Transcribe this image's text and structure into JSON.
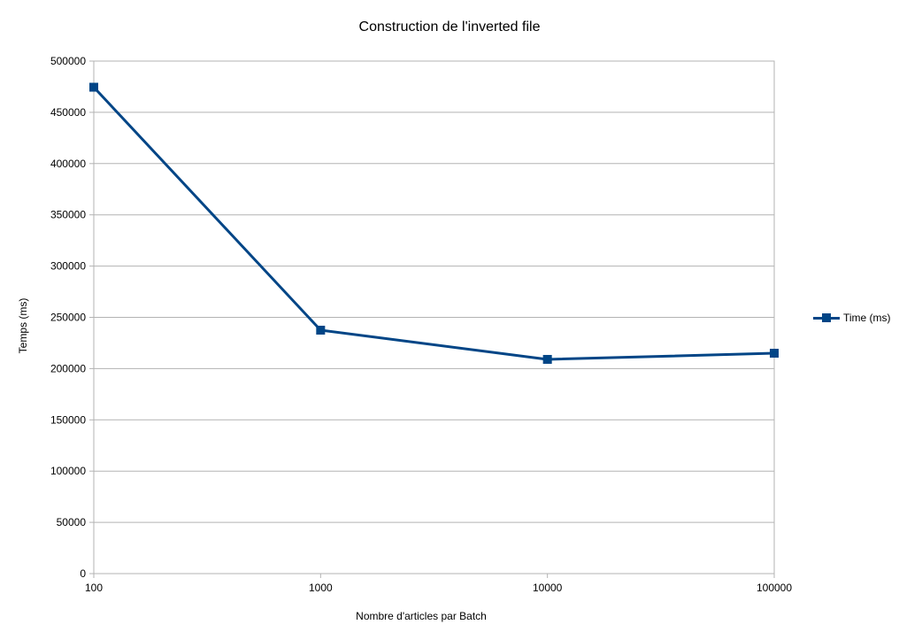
{
  "chart_data": {
    "type": "line",
    "title": "Construction de l'inverted file",
    "xlabel": "Nombre d'articles par Batch",
    "ylabel": "Temps (ms)",
    "x_scale": "log",
    "categories": [
      "100",
      "1000",
      "10000",
      "100000"
    ],
    "x": [
      100,
      1000,
      10000,
      100000
    ],
    "series": [
      {
        "name": "Time (ms)",
        "values": [
          474500,
          237500,
          209000,
          215000
        ],
        "color": "#004586",
        "marker": "square"
      }
    ],
    "ylim": [
      0,
      500000
    ],
    "y_ticks": [
      0,
      50000,
      100000,
      150000,
      200000,
      250000,
      300000,
      350000,
      400000,
      450000,
      500000
    ],
    "y_tick_labels": [
      "0",
      "50000",
      "100000",
      "150000",
      "200000",
      "250000",
      "300000",
      "350000",
      "400000",
      "450000",
      "500000"
    ],
    "grid": true,
    "legend_position": "right"
  }
}
